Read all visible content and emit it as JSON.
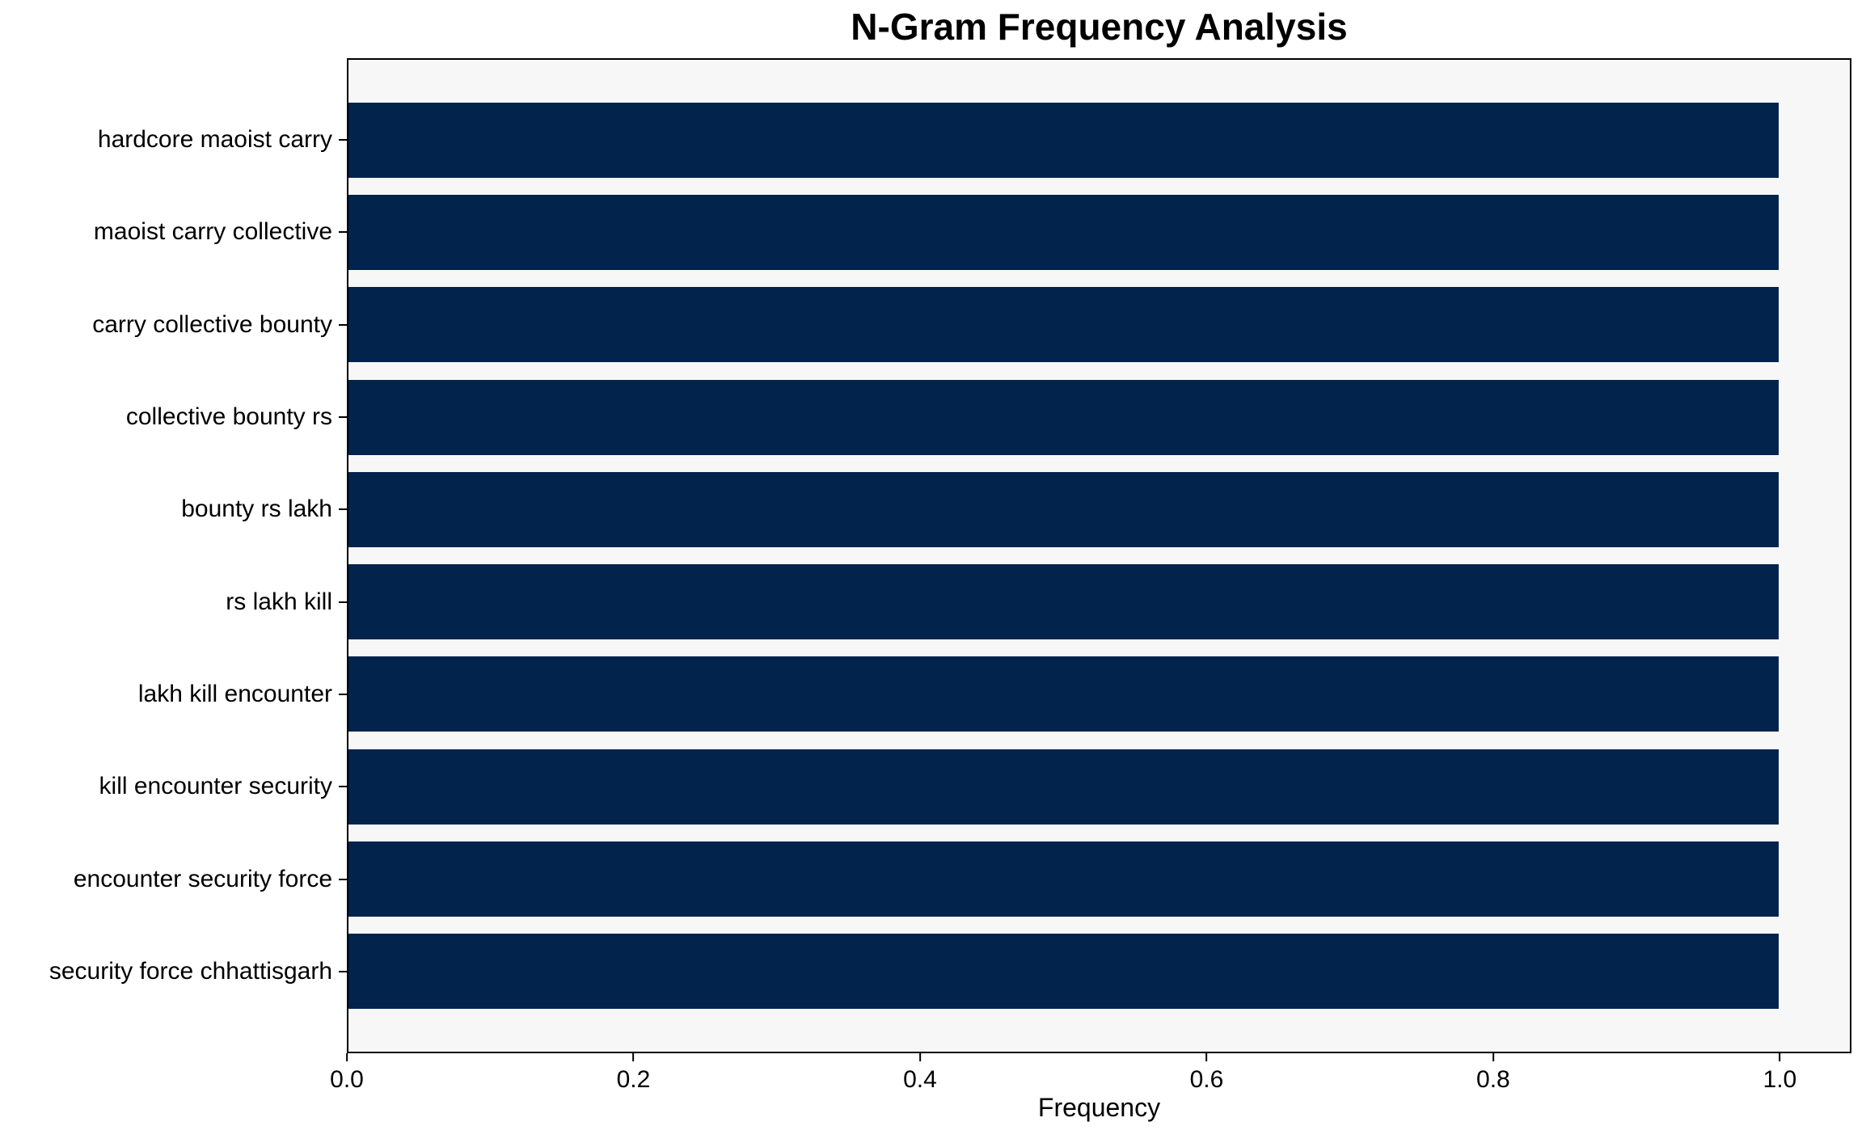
{
  "chart_data": {
    "type": "bar",
    "orientation": "horizontal",
    "title": "N-Gram Frequency Analysis",
    "xlabel": "Frequency",
    "ylabel": "",
    "categories": [
      "hardcore maoist carry",
      "maoist carry collective",
      "carry collective bounty",
      "collective bounty rs",
      "bounty rs lakh",
      "rs lakh kill",
      "lakh kill encounter",
      "kill encounter security",
      "encounter security force",
      "security force chhattisgarh"
    ],
    "values": [
      1.0,
      1.0,
      1.0,
      1.0,
      1.0,
      1.0,
      1.0,
      1.0,
      1.0,
      1.0
    ],
    "xticks": [
      "0.0",
      "0.2",
      "0.4",
      "0.6",
      "0.8",
      "1.0"
    ],
    "xtick_values": [
      0.0,
      0.2,
      0.4,
      0.6,
      0.8,
      1.0
    ],
    "xlim": [
      0.0,
      1.05
    ],
    "grid": false,
    "legend": null,
    "bar_color": "#02234C",
    "plot_background": "#F7F7F7",
    "figure_background": "#FFFFFF",
    "spine_color": "#000000"
  }
}
